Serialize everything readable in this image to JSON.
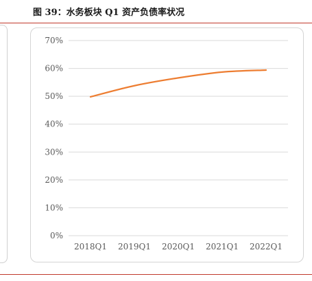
{
  "figure": {
    "caption": "图 39：水务板块 Q1 资产负债率状况"
  },
  "colors": {
    "line": "#ED7D31",
    "rule": "#C0392B",
    "grid": "#D9D9D9"
  },
  "chart_data": {
    "type": "line",
    "categories": [
      "2018Q1",
      "2019Q1",
      "2020Q1",
      "2021Q1",
      "2022Q1"
    ],
    "series": [
      {
        "values": [
          49.8,
          53.8,
          56.6,
          58.7,
          59.4
        ]
      }
    ],
    "y_ticks": [
      "0%",
      "10%",
      "20%",
      "30%",
      "40%",
      "50%",
      "60%",
      "70%"
    ],
    "ylim": [
      0,
      70
    ],
    "grid": true,
    "legend": "none"
  }
}
